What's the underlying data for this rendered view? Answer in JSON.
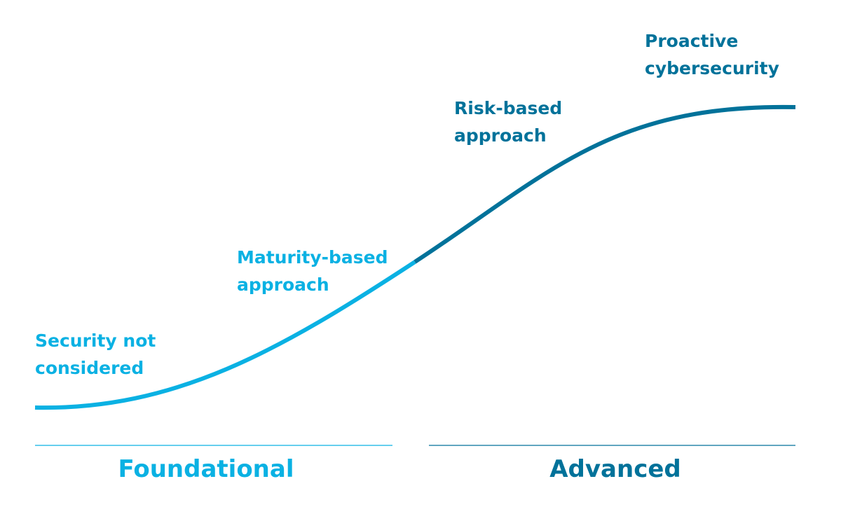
{
  "stages": [
    {
      "lines": [
        "Security not",
        "considered"
      ]
    },
    {
      "lines": [
        "Maturity-based",
        "approach"
      ]
    },
    {
      "lines": [
        "Risk-based",
        "approach"
      ]
    },
    {
      "lines": [
        "Proactive",
        "cybersecurity"
      ]
    }
  ],
  "phases": [
    {
      "label": "Foundational"
    },
    {
      "label": "Advanced"
    }
  ]
}
